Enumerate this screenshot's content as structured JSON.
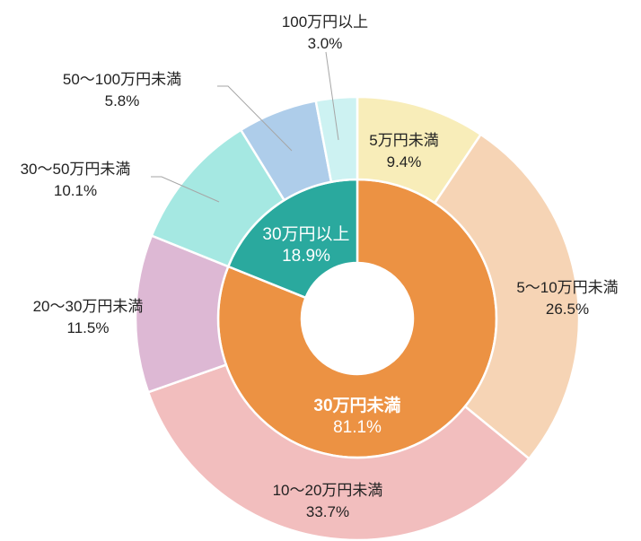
{
  "chart_data": {
    "type": "donut",
    "rings": [
      {
        "ring": "inner",
        "slices": [
          {
            "label": "30万円未満",
            "value": 81.1,
            "value_text": "81.1%",
            "color": "#EC9243"
          },
          {
            "label": "30万円以上",
            "value": 18.9,
            "value_text": "18.9%",
            "color": "#2AA99E"
          }
        ]
      },
      {
        "ring": "outer",
        "slices": [
          {
            "label": "5万円未満",
            "value": 9.4,
            "value_text": "9.4%",
            "color": "#F8EDB9"
          },
          {
            "label": "5～10万円未満",
            "value": 26.5,
            "value_text": "26.5%",
            "color": "#F6D4B5"
          },
          {
            "label": "10～20万円未満",
            "value": 33.7,
            "value_text": "33.7%",
            "color": "#F2BEBE"
          },
          {
            "label": "20～30万円未満",
            "value": 11.5,
            "value_text": "11.5%",
            "color": "#DDB8D4"
          },
          {
            "label": "30～50万円未満",
            "value": 10.1,
            "value_text": "10.1%",
            "color": "#A5E8E2"
          },
          {
            "label": "50～100万円未満",
            "value": 5.8,
            "value_text": "5.8%",
            "color": "#AECDEA"
          },
          {
            "label": "100万円以上",
            "value": 3.0,
            "value_text": "3.0%",
            "color": "#CDF2F2"
          }
        ]
      }
    ]
  }
}
